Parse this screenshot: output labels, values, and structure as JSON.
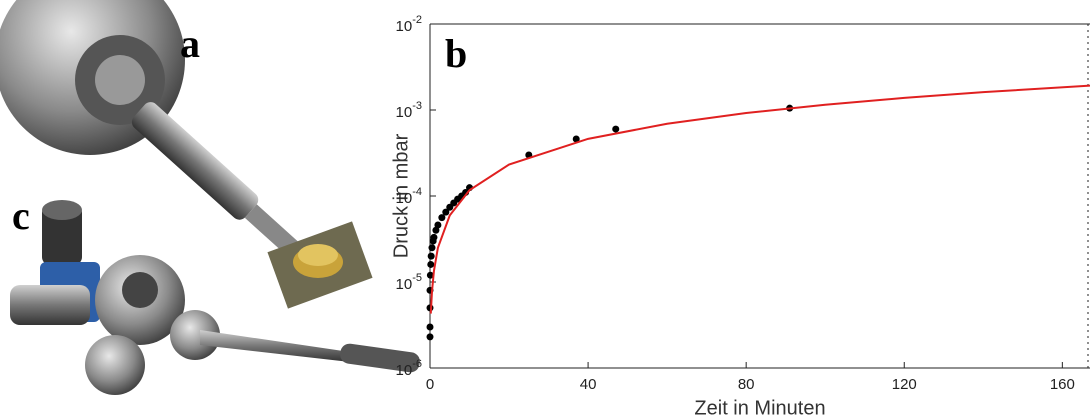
{
  "panel_labels": [
    "a",
    "b",
    "c"
  ],
  "chart_data": {
    "type": "scatter",
    "xlabel": "Zeit in Minuten",
    "ylabel": "Druck in mbar",
    "yscale": "log",
    "grid": false,
    "xlim": [
      0,
      167
    ],
    "ylim": [
      1e-06,
      0.01
    ],
    "xticks": [
      0,
      40,
      80,
      120,
      160
    ],
    "yticks": [
      {
        "value": 1e-06,
        "label": "10^-6"
      },
      {
        "value": 1e-05,
        "label": "10^-5"
      },
      {
        "value": 0.0001,
        "label": "10^-4"
      },
      {
        "value": 0.001,
        "label": "10^-3"
      },
      {
        "value": 0.01,
        "label": "10^-2"
      }
    ],
    "series": [
      {
        "type": "scatter",
        "color": "#000000",
        "x": [
          0,
          0,
          0,
          0,
          0.1,
          0.2,
          0.3,
          0.5,
          0.8,
          1,
          1.5,
          2,
          3,
          4,
          5,
          6,
          7,
          8,
          9,
          10,
          25,
          37,
          47,
          91
        ],
        "values": [
          2.3e-06,
          3e-06,
          5e-06,
          8e-06,
          1.2e-05,
          1.6e-05,
          2e-05,
          2.5e-05,
          3e-05,
          3.3e-05,
          4e-05,
          4.6e-05,
          5.6e-05,
          6.5e-05,
          7.4e-05,
          8.3e-05,
          9.2e-05,
          0.0001,
          0.00011,
          0.000125,
          0.0003,
          0.00046,
          0.0006,
          0.00105
        ]
      },
      {
        "type": "line",
        "color": "#e02020",
        "x": [
          0.2,
          0.5,
          1,
          2,
          5,
          10,
          20,
          40,
          60,
          80,
          100,
          120,
          140,
          167
        ],
        "values": [
          4.3e-06,
          7.75e-06,
          1.35e-05,
          2.5e-05,
          5.95e-05,
          0.000117,
          0.000232,
          0.000462,
          0.000692,
          0.000922,
          0.001152,
          0.001382,
          0.001612,
          0.001922
        ]
      }
    ]
  }
}
